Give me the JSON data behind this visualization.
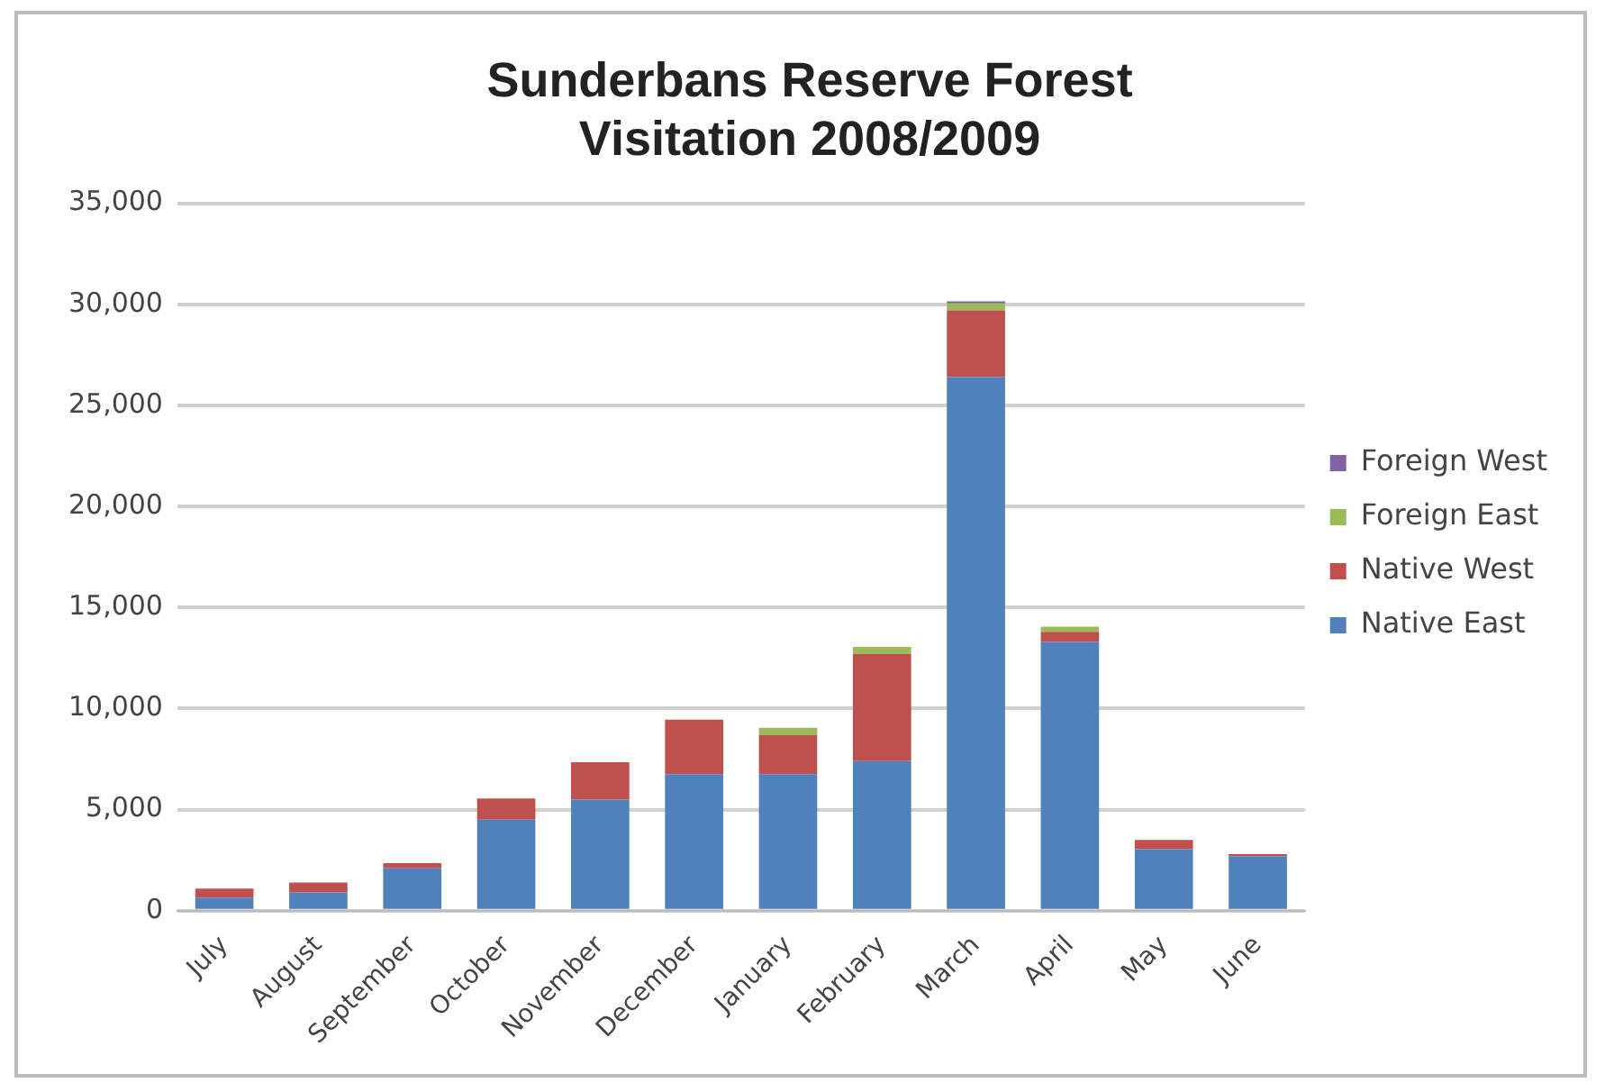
{
  "chart_data": {
    "type": "bar",
    "title": "Sunderbans Reserve Forest\nVisitation 2008/2009",
    "categories": [
      "July",
      "August",
      "September",
      "October",
      "November",
      "December",
      "January",
      "February",
      "March",
      "April",
      "May",
      "June"
    ],
    "stacked": true,
    "ylim": [
      0,
      35000
    ],
    "yticks": [
      {
        "value": 0,
        "label": "0"
      },
      {
        "value": 5000,
        "label": "5,000"
      },
      {
        "value": 10000,
        "label": "10,000"
      },
      {
        "value": 15000,
        "label": "15,000"
      },
      {
        "value": 20000,
        "label": "20,000"
      },
      {
        "value": 25000,
        "label": "25,000"
      },
      {
        "value": 30000,
        "label": "30,000"
      },
      {
        "value": 35000,
        "label": "35,000"
      }
    ],
    "grid": "y",
    "legend": "right",
    "series": [
      {
        "name": "Native East",
        "color": "#4f81bd",
        "values": [
          650,
          900,
          2100,
          4500,
          5500,
          6750,
          6750,
          7400,
          26400,
          13300,
          3050,
          2700
        ]
      },
      {
        "name": "Native West",
        "color": "#c0504d",
        "values": [
          450,
          500,
          250,
          1050,
          1850,
          2700,
          1950,
          5300,
          3300,
          500,
          450,
          100
        ]
      },
      {
        "name": "Foreign East",
        "color": "#9bbb59",
        "values": [
          0,
          0,
          0,
          0,
          0,
          0,
          350,
          350,
          350,
          250,
          0,
          0
        ]
      },
      {
        "name": "Foreign West",
        "color": "#8064a2",
        "values": [
          0,
          0,
          0,
          0,
          0,
          0,
          0,
          0,
          100,
          0,
          0,
          0
        ]
      }
    ]
  }
}
